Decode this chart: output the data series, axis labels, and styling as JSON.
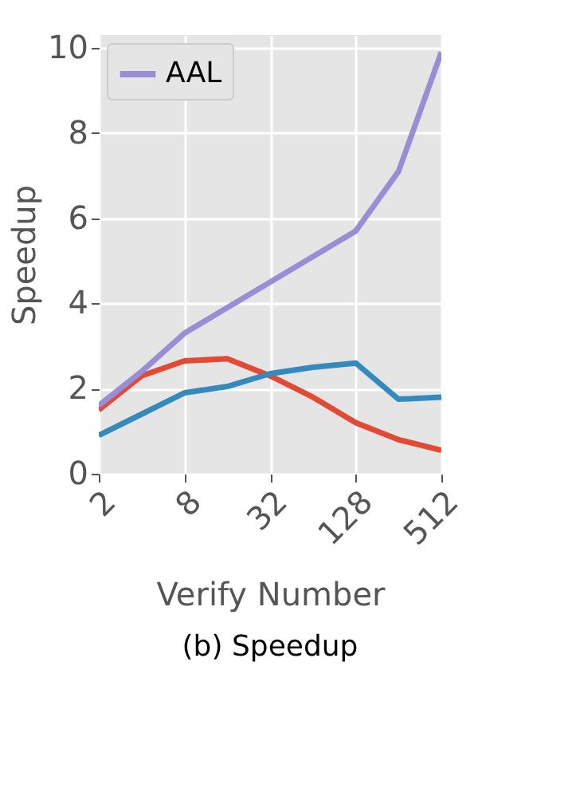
{
  "chart_data": {
    "type": "line",
    "title": "(b) Speedup",
    "xlabel": "Verify Number",
    "ylabel": "Speedup",
    "log": "x",
    "x": [
      2,
      4,
      8,
      16,
      32,
      64,
      128,
      256,
      512
    ],
    "xlim": [
      2,
      512
    ],
    "xticks": [
      2,
      8,
      32,
      128,
      512
    ],
    "ylim": [
      0,
      10.3
    ],
    "yticks": [
      0,
      2,
      4,
      6,
      8,
      10
    ],
    "grid": true,
    "legend": "top left",
    "line_style": "solid",
    "marker": "none",
    "series": [
      {
        "color": "#e24a33",
        "values": [
          1.5,
          2.3,
          2.65,
          2.7,
          2.3,
          1.8,
          1.2,
          0.8,
          0.55
        ]
      },
      {
        "color": "#348abd",
        "values": [
          0.9,
          1.4,
          1.9,
          2.05,
          2.35,
          2.5,
          2.6,
          1.75,
          1.8
        ]
      },
      {
        "name": "AAL",
        "color": "#988ed5",
        "values": [
          1.6,
          2.4,
          3.3,
          3.9,
          4.5,
          5.1,
          5.7,
          7.1,
          9.9
        ]
      }
    ]
  }
}
